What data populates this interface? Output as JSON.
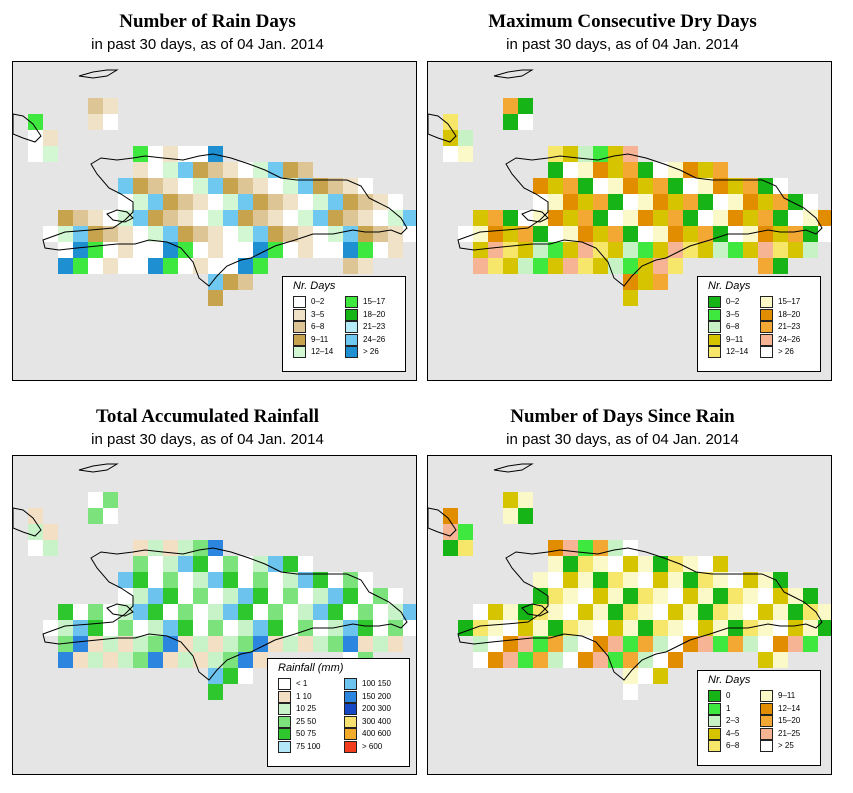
{
  "panels": [
    {
      "id": "rain_days",
      "title": "Number of Rain Days",
      "subtitle": "in past 30 days, as of  04 Jan. 2014",
      "legend": {
        "title": "Nr. Days",
        "items": [
          {
            "label": "0–2",
            "color": "#ffffff"
          },
          {
            "label": "3–5",
            "color": "#f0e2c6"
          },
          {
            "label": "6–8",
            "color": "#ddc596"
          },
          {
            "label": "9–11",
            "color": "#c6a34c"
          },
          {
            "label": "12–14",
            "color": "#d2f7d2"
          },
          {
            "label": "15–17",
            "color": "#3ee83e"
          },
          {
            "label": "18–20",
            "color": "#16b416"
          },
          {
            "label": "21–23",
            "color": "#b6ecf8"
          },
          {
            "label": "24–26",
            "color": "#6ec8f0"
          },
          {
            "label": "> 26",
            "color": "#1e8fd0"
          }
        ]
      }
    },
    {
      "id": "max_dry",
      "title": "Maximum Consecutive Dry Days",
      "subtitle": "in past 30 days, as of  04 Jan. 2014",
      "legend": {
        "title": "Nr. Days",
        "items": [
          {
            "label": "0–2",
            "color": "#16b416"
          },
          {
            "label": "3–5",
            "color": "#3ee83e"
          },
          {
            "label": "6–8",
            "color": "#c6f2c6"
          },
          {
            "label": "9–11",
            "color": "#d6c400"
          },
          {
            "label": "12–14",
            "color": "#f6e66a"
          },
          {
            "label": "15–17",
            "color": "#fbf9c8"
          },
          {
            "label": "18–20",
            "color": "#e28c00"
          },
          {
            "label": "21–23",
            "color": "#f2a832"
          },
          {
            "label": "24–26",
            "color": "#f6b494"
          },
          {
            "label": "> 26",
            "color": "#ffffff"
          }
        ]
      }
    },
    {
      "id": "rainfall",
      "title": "Total Accumulated Rainfall",
      "subtitle": "in past 30 days, as of  04 Jan. 2014",
      "legend": {
        "title": "Rainfall (mm)",
        "items": [
          {
            "label": "< 1",
            "color": "#ffffff"
          },
          {
            "label": "1    10",
            "color": "#f2dfc4"
          },
          {
            "label": "10    25",
            "color": "#c8f2c8"
          },
          {
            "label": "25    50",
            "color": "#7ce27c"
          },
          {
            "label": "50    75",
            "color": "#2ec82e"
          },
          {
            "label": "75    100",
            "color": "#b4e8f8"
          },
          {
            "label": "100    150",
            "color": "#6cc4ee"
          },
          {
            "label": "150    200",
            "color": "#2c86e0"
          },
          {
            "label": "200    300",
            "color": "#1448c4"
          },
          {
            "label": "300    400",
            "color": "#f6e26e"
          },
          {
            "label": "400    600",
            "color": "#f2aa2a"
          },
          {
            "label": "> 600",
            "color": "#f23c1e"
          }
        ]
      }
    },
    {
      "id": "days_since",
      "title": "Number of Days Since Rain",
      "subtitle": "in past 30 days, as of  04 Jan. 2014",
      "legend": {
        "title": "Nr. Days",
        "items": [
          {
            "label": "0",
            "color": "#16b416"
          },
          {
            "label": "1",
            "color": "#3ee83e"
          },
          {
            "label": "2–3",
            "color": "#c6f2c6"
          },
          {
            "label": "4–5",
            "color": "#d6c400"
          },
          {
            "label": "6–8",
            "color": "#f6e66a"
          },
          {
            "label": "9–11",
            "color": "#fbf9c8"
          },
          {
            "label": "12–14",
            "color": "#e28c00"
          },
          {
            "label": "15–20",
            "color": "#f2a832"
          },
          {
            "label": "21–25",
            "color": "#f6b494"
          },
          {
            "label": "> 25",
            "color": "#ffffff"
          }
        ]
      }
    }
  ]
}
